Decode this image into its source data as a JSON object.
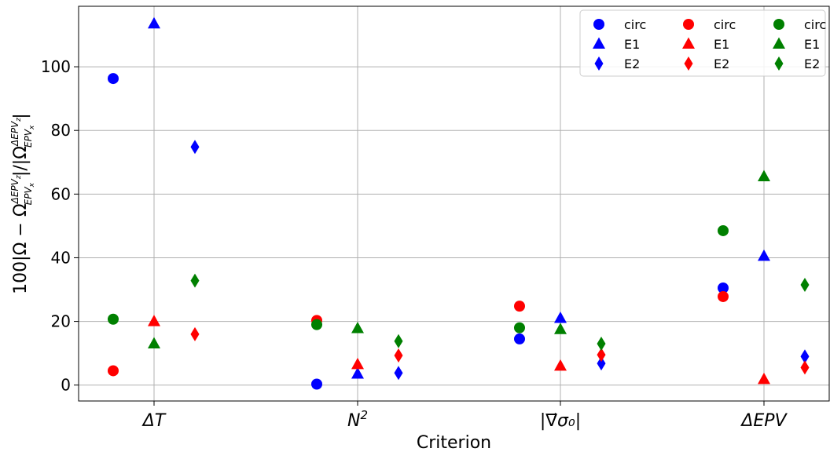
{
  "chart_data": {
    "type": "scatter",
    "xlabel": "Criterion",
    "ylabel_parts": {
      "prefix": "100|Ω − Ω",
      "sup": "ΔEPV",
      "sup_sub": "z",
      "sub": "EPV",
      "sub_sub": "x",
      "mid": "|/|Ω",
      "suffix": "|"
    },
    "ylim": [
      -5,
      119
    ],
    "yticks": [
      0,
      20,
      40,
      60,
      80,
      100
    ],
    "grid": true,
    "legend_position": "top-right",
    "categories": [
      {
        "base": "ΔT",
        "sup": ""
      },
      {
        "base": "N",
        "sup": "2"
      },
      {
        "base": "|∇⃗σ₀|",
        "sup": ""
      },
      {
        "base": "ΔEPV",
        "sup": ""
      }
    ],
    "series": [
      {
        "name": "circ",
        "group": "blue",
        "color": "#0000ff",
        "marker": "circle",
        "values": [
          96.3,
          0.3,
          14.5,
          30.5
        ]
      },
      {
        "name": "E1",
        "group": "blue",
        "color": "#0000ff",
        "marker": "triangle",
        "values": [
          113.5,
          3.5,
          21.0,
          40.5
        ]
      },
      {
        "name": "E2",
        "group": "blue",
        "color": "#0000ff",
        "marker": "diamond",
        "values": [
          74.8,
          3.8,
          6.8,
          9.0
        ]
      },
      {
        "name": "circ",
        "group": "red",
        "color": "#ff0000",
        "marker": "circle",
        "values": [
          4.5,
          20.3,
          24.8,
          27.8
        ]
      },
      {
        "name": "E1",
        "group": "red",
        "color": "#ff0000",
        "marker": "triangle",
        "values": [
          20.0,
          6.5,
          6.0,
          1.8
        ]
      },
      {
        "name": "E2",
        "group": "red",
        "color": "#ff0000",
        "marker": "diamond",
        "values": [
          16.0,
          9.3,
          9.5,
          5.5
        ]
      },
      {
        "name": "circ",
        "group": "green",
        "color": "#008000",
        "marker": "circle",
        "values": [
          20.7,
          19.0,
          18.0,
          48.5
        ]
      },
      {
        "name": "E1",
        "group": "green",
        "color": "#008000",
        "marker": "triangle",
        "values": [
          13.0,
          17.8,
          17.5,
          65.5
        ]
      },
      {
        "name": "E2",
        "group": "green",
        "color": "#008000",
        "marker": "diamond",
        "values": [
          32.8,
          13.8,
          13.0,
          31.5
        ]
      }
    ]
  }
}
